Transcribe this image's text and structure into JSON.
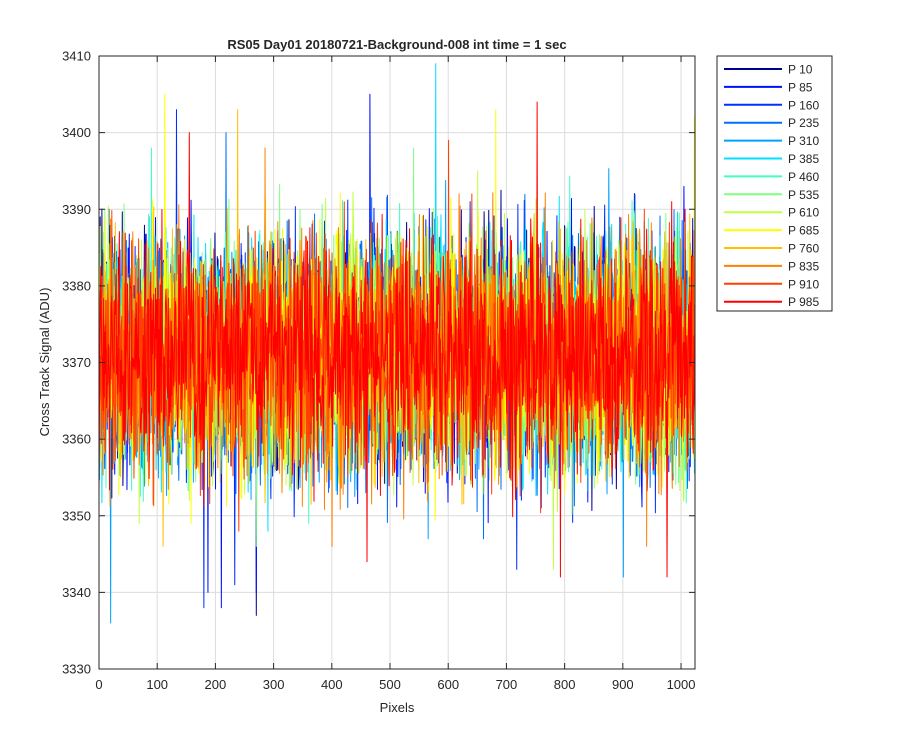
{
  "chart_data": {
    "type": "line",
    "title": "RS05 Day01 20180721-Background-008 int time = 1 sec",
    "xlabel": "Pixels",
    "ylabel": "Cross Track Signal (ADU)",
    "xlim": [
      0,
      1024
    ],
    "ylim": [
      3330,
      3410
    ],
    "xticks": [
      0,
      100,
      200,
      300,
      400,
      500,
      600,
      700,
      800,
      900,
      1000
    ],
    "yticks": [
      3330,
      3340,
      3350,
      3360,
      3370,
      3380,
      3390,
      3400,
      3410
    ],
    "grid": true,
    "legend_position": "outside-right",
    "noise": {
      "mean": 3371,
      "sigma": 7.5,
      "points": 1024
    },
    "series": [
      {
        "name": "P 10",
        "color": "#00008f",
        "spikes": [
          [
            2,
            3389
          ],
          [
            5,
            3390
          ],
          [
            17,
            3390
          ],
          [
            270,
            3337
          ]
        ]
      },
      {
        "name": "P 85",
        "color": "#0010ff",
        "spikes": [
          [
            187,
            3340
          ],
          [
            210,
            3338
          ],
          [
            270,
            3340
          ],
          [
            465,
            3405
          ]
        ]
      },
      {
        "name": "P 160",
        "color": "#0030ff",
        "spikes": [
          [
            133,
            3403
          ],
          [
            180,
            3338
          ],
          [
            233,
            3341
          ],
          [
            717,
            3343
          ]
        ]
      },
      {
        "name": "P 235",
        "color": "#0070ff",
        "spikes": [
          [
            218,
            3400
          ],
          [
            660,
            3347
          ]
        ]
      },
      {
        "name": "P 310",
        "color": "#00a0ff",
        "spikes": [
          [
            20,
            3336
          ],
          [
            565,
            3347
          ],
          [
            900,
            3342
          ]
        ]
      },
      {
        "name": "P 385",
        "color": "#00e0ff",
        "spikes": [
          [
            578,
            3409
          ],
          [
            290,
            3348
          ]
        ]
      },
      {
        "name": "P 460",
        "color": "#40ffc0",
        "spikes": [
          [
            90,
            3398
          ],
          [
            360,
            3349
          ]
        ]
      },
      {
        "name": "P 535",
        "color": "#80ff80",
        "spikes": [
          [
            540,
            3398
          ],
          [
            270,
            3346
          ]
        ]
      },
      {
        "name": "P 610",
        "color": "#c0ff40",
        "spikes": [
          [
            780,
            3343
          ],
          [
            650,
            3395
          ]
        ]
      },
      {
        "name": "P 685",
        "color": "#ffff00",
        "spikes": [
          [
            113,
            3405
          ],
          [
            681,
            3403
          ],
          [
            1022,
            3402
          ]
        ]
      },
      {
        "name": "P 760",
        "color": "#ffc000",
        "spikes": [
          [
            238,
            3403
          ],
          [
            110,
            3346
          ]
        ]
      },
      {
        "name": "P 835",
        "color": "#ff8000",
        "spikes": [
          [
            285,
            3398
          ],
          [
            940,
            3346
          ],
          [
            400,
            3346
          ]
        ]
      },
      {
        "name": "P 910",
        "color": "#ff4000",
        "spikes": [
          [
            600,
            3399
          ],
          [
            240,
            3348
          ]
        ]
      },
      {
        "name": "P 985",
        "color": "#ff0000",
        "spikes": [
          [
            155,
            3400
          ],
          [
            460,
            3344
          ],
          [
            752,
            3404
          ],
          [
            792,
            3342
          ],
          [
            975,
            3342
          ]
        ]
      }
    ]
  }
}
